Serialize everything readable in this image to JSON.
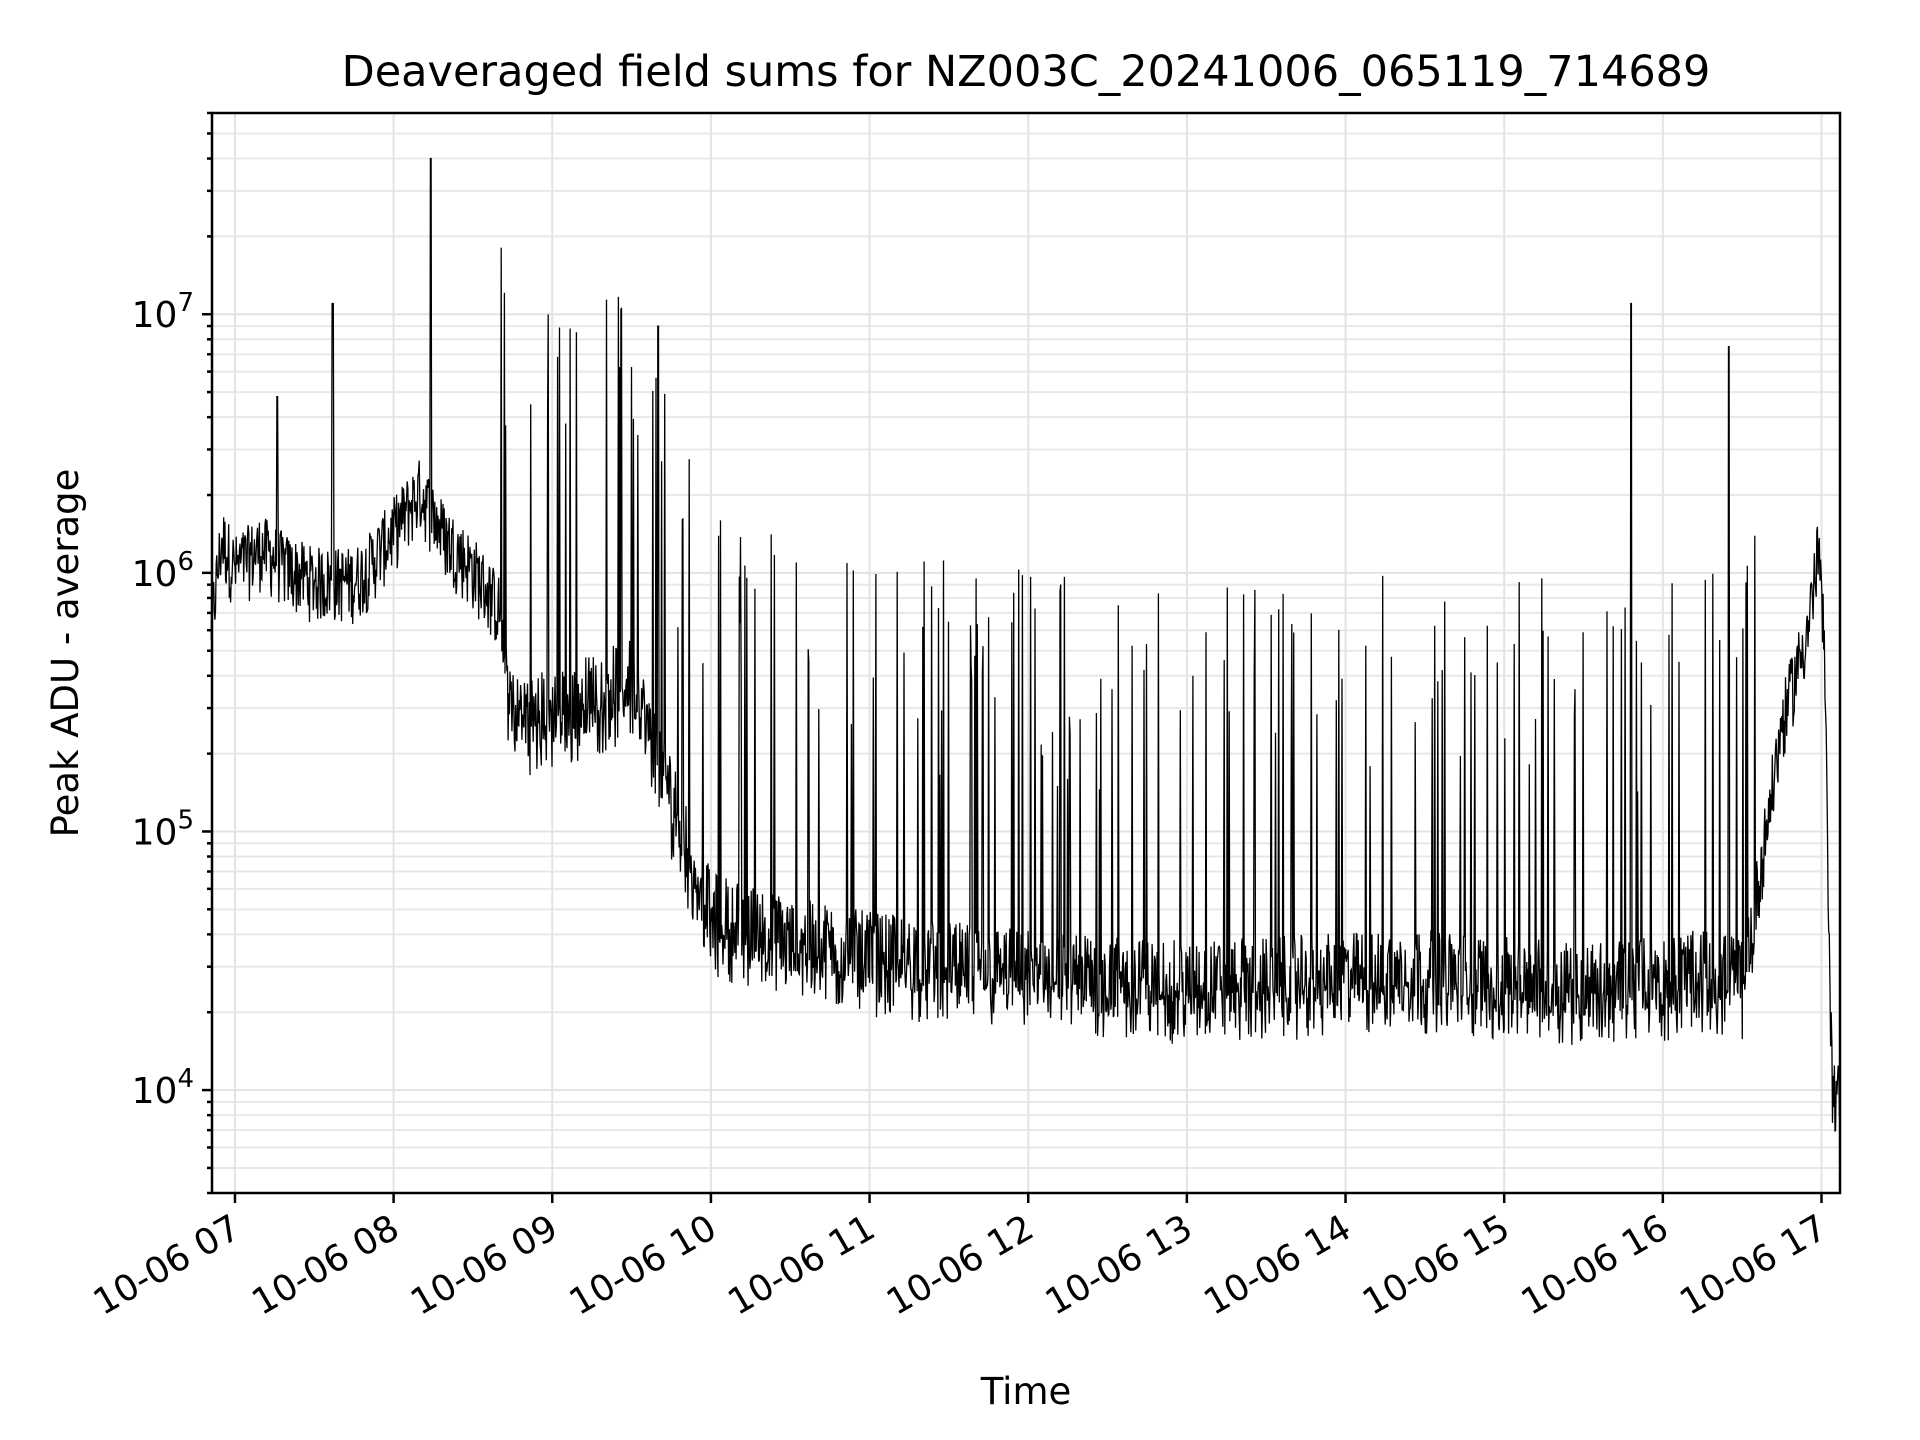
{
  "chart_data": {
    "type": "line",
    "title": "Deaveraged field sums for NZ003C_20241006_065119_714689",
    "xlabel": "Time",
    "ylabel": "Peak ADU - average",
    "y_scale": "log",
    "ylim": [
      4000,
      60000000
    ],
    "y_decade_ticks": [
      {
        "value": 10000,
        "base": "10",
        "exp": "4"
      },
      {
        "value": 100000,
        "base": "10",
        "exp": "5"
      },
      {
        "value": 1000000,
        "base": "10",
        "exp": "6"
      },
      {
        "value": 10000000,
        "base": "10",
        "exp": "7"
      }
    ],
    "x_range": [
      "2024-10-06T06:51:19",
      "2024-10-06T17:07:00"
    ],
    "x_ticks": [
      {
        "label": "10-06 07",
        "time": "2024-10-06T07:00"
      },
      {
        "label": "10-06 08",
        "time": "2024-10-06T08:00"
      },
      {
        "label": "10-06 09",
        "time": "2024-10-06T09:00"
      },
      {
        "label": "10-06 10",
        "time": "2024-10-06T10:00"
      },
      {
        "label": "10-06 11",
        "time": "2024-10-06T11:00"
      },
      {
        "label": "10-06 12",
        "time": "2024-10-06T12:00"
      },
      {
        "label": "10-06 13",
        "time": "2024-10-06T13:00"
      },
      {
        "label": "10-06 14",
        "time": "2024-10-06T14:00"
      },
      {
        "label": "10-06 15",
        "time": "2024-10-06T15:00"
      },
      {
        "label": "10-06 16",
        "time": "2024-10-06T16:00"
      },
      {
        "label": "10-06 17",
        "time": "2024-10-06T17:00"
      }
    ],
    "grid": true,
    "line_color": "#000000",
    "series": [
      {
        "x": [
          "2024-10-06T06:51",
          "2024-10-06T06:55",
          "2024-10-06T07:00",
          "2024-10-06T07:10",
          "2024-10-06T07:16",
          "2024-10-06T07:20",
          "2024-10-06T07:30",
          "2024-10-06T07:37",
          "2024-10-06T07:45",
          "2024-10-06T07:50",
          "2024-10-06T08:00",
          "2024-10-06T08:10",
          "2024-10-06T08:14",
          "2024-10-06T08:20",
          "2024-10-06T08:30",
          "2024-10-06T08:40",
          "2024-10-06T08:45",
          "2024-10-06T09:00",
          "2024-10-06T09:15",
          "2024-10-06T09:30",
          "2024-10-06T09:40",
          "2024-10-06T10:00",
          "2024-10-06T10:30",
          "2024-10-06T11:00",
          "2024-10-06T11:30",
          "2024-10-06T12:00",
          "2024-10-06T12:30",
          "2024-10-06T13:00",
          "2024-10-06T13:30",
          "2024-10-06T14:00",
          "2024-10-06T14:30",
          "2024-10-06T15:00",
          "2024-10-06T15:30",
          "2024-10-06T15:48",
          "2024-10-06T16:00",
          "2024-10-06T16:15",
          "2024-10-06T16:25",
          "2024-10-06T16:30",
          "2024-10-06T16:36",
          "2024-10-06T16:45",
          "2024-10-06T16:55",
          "2024-10-06T16:59",
          "2024-10-06T17:01",
          "2024-10-06T17:04",
          "2024-10-06T17:07"
        ],
        "y": [
          600000,
          1300000,
          1000000,
          1200000,
          4800000,
          1000000,
          900000,
          11000000,
          900000,
          1000000,
          1400000,
          2000000,
          40000000,
          1300000,
          1000000,
          700000,
          300000,
          300000,
          350000,
          400000,
          9000000,
          50000,
          40000,
          35000,
          32000,
          30000,
          28000,
          27000,
          28000,
          29000,
          30000,
          28000,
          27000,
          11000000,
          28000,
          30000,
          7500000,
          28000,
          60000,
          250000,
          600000,
          1200000,
          500000,
          10000,
          9000
        ]
      }
    ]
  }
}
